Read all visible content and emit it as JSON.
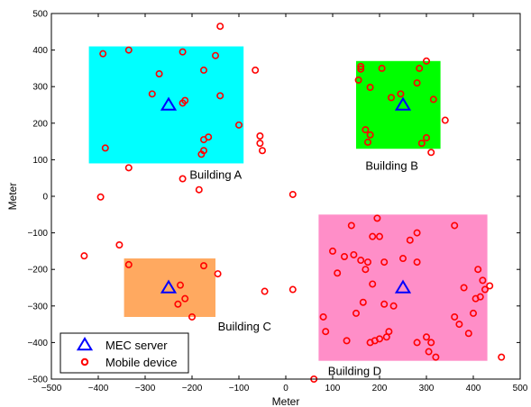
{
  "chart_data": {
    "type": "scatter",
    "title": "",
    "xlabel": "Meter",
    "ylabel": "Meter",
    "xlim": [
      -500,
      500
    ],
    "ylim": [
      -500,
      500
    ],
    "xticks": [
      -500,
      -400,
      -300,
      -200,
      -100,
      0,
      100,
      200,
      300,
      400,
      500
    ],
    "yticks": [
      -500,
      -400,
      -300,
      -200,
      -100,
      0,
      100,
      200,
      300,
      400,
      500
    ],
    "xtick_labels": [
      "−500",
      "−400",
      "−300",
      "−200",
      "−100",
      "0",
      "100",
      "200",
      "300",
      "400",
      "500"
    ],
    "ytick_labels": [
      "−500",
      "−400",
      "−300",
      "−200",
      "−100",
      "0",
      "100",
      "200",
      "300",
      "400",
      "500"
    ],
    "grid": false,
    "legend_position": "bottom-left",
    "buildings": [
      {
        "name": "Building A",
        "x0": -420,
        "x1": -90,
        "y0": 90,
        "y1": 410,
        "color": "#00ffff",
        "label_x": -205,
        "label_y": 60
      },
      {
        "name": "Building B",
        "x0": 150,
        "x1": 330,
        "y0": 130,
        "y1": 370,
        "color": "#00ff00",
        "label_x": 170,
        "label_y": 85
      },
      {
        "name": "Building C",
        "x0": -345,
        "x1": -150,
        "y0": -330,
        "y1": -170,
        "color": "#ffa960",
        "label_x": -145,
        "label_y": -355
      },
      {
        "name": "Building D",
        "x0": 70,
        "x1": 430,
        "y0": -450,
        "y1": -50,
        "color": "#ff8ec8",
        "label_x": 90,
        "label_y": -477
      }
    ],
    "series": [
      {
        "name": "MEC server",
        "marker": "triangle",
        "color": "#0000ff",
        "points": [
          [
            -250,
            250
          ],
          [
            250,
            250
          ],
          [
            -250,
            -250
          ],
          [
            250,
            -250
          ]
        ]
      },
      {
        "name": "Mobile device",
        "marker": "circle",
        "color": "#ff0000",
        "points": [
          [
            -390,
            390
          ],
          [
            -335,
            400
          ],
          [
            -220,
            395
          ],
          [
            -150,
            385
          ],
          [
            -140,
            465
          ],
          [
            -270,
            335
          ],
          [
            -175,
            345
          ],
          [
            -65,
            345
          ],
          [
            -285,
            280
          ],
          [
            -140,
            275
          ],
          [
            -220,
            255
          ],
          [
            -215,
            262
          ],
          [
            -100,
            195
          ],
          [
            -55,
            165
          ],
          [
            -55,
            145
          ],
          [
            -50,
            125
          ],
          [
            -175,
            155
          ],
          [
            -165,
            162
          ],
          [
            -175,
            125
          ],
          [
            -180,
            115
          ],
          [
            -385,
            132
          ],
          [
            -335,
            78
          ],
          [
            -220,
            48
          ],
          [
            -185,
            18
          ],
          [
            -395,
            -2
          ],
          [
            15,
            5
          ],
          [
            160,
            355
          ],
          [
            160,
            348
          ],
          [
            205,
            350
          ],
          [
            285,
            350
          ],
          [
            300,
            370
          ],
          [
            155,
            318
          ],
          [
            280,
            310
          ],
          [
            180,
            298
          ],
          [
            225,
            270
          ],
          [
            245,
            280
          ],
          [
            315,
            265
          ],
          [
            340,
            208
          ],
          [
            170,
            182
          ],
          [
            180,
            168
          ],
          [
            175,
            148
          ],
          [
            290,
            145
          ],
          [
            300,
            160
          ],
          [
            310,
            120
          ],
          [
            -430,
            -163
          ],
          [
            -355,
            -133
          ],
          [
            -335,
            -187
          ],
          [
            -225,
            -243
          ],
          [
            -230,
            -295
          ],
          [
            -215,
            -280
          ],
          [
            -175,
            -190
          ],
          [
            -145,
            -212
          ],
          [
            -200,
            -330
          ],
          [
            -45,
            -260
          ],
          [
            15,
            -255
          ],
          [
            140,
            -80
          ],
          [
            195,
            -60
          ],
          [
            100,
            -150
          ],
          [
            125,
            -165
          ],
          [
            185,
            -110
          ],
          [
            200,
            -110
          ],
          [
            360,
            -80
          ],
          [
            265,
            -120
          ],
          [
            280,
            -100
          ],
          [
            110,
            -210
          ],
          [
            145,
            -160
          ],
          [
            160,
            -175
          ],
          [
            175,
            -180
          ],
          [
            210,
            -180
          ],
          [
            170,
            -200
          ],
          [
            185,
            -240
          ],
          [
            280,
            -180
          ],
          [
            250,
            -170
          ],
          [
            230,
            -300
          ],
          [
            165,
            -290
          ],
          [
            210,
            -295
          ],
          [
            80,
            -330
          ],
          [
            150,
            -320
          ],
          [
            410,
            -200
          ],
          [
            380,
            -250
          ],
          [
            420,
            -230
          ],
          [
            425,
            -255
          ],
          [
            435,
            -245
          ],
          [
            415,
            -275
          ],
          [
            405,
            -280
          ],
          [
            400,
            -320
          ],
          [
            85,
            -370
          ],
          [
            130,
            -395
          ],
          [
            180,
            -400
          ],
          [
            190,
            -395
          ],
          [
            220,
            -370
          ],
          [
            215,
            -385
          ],
          [
            200,
            -390
          ],
          [
            280,
            -400
          ],
          [
            310,
            -400
          ],
          [
            360,
            -330
          ],
          [
            370,
            -350
          ],
          [
            390,
            -375
          ],
          [
            300,
            -385
          ],
          [
            305,
            -425
          ],
          [
            320,
            -440
          ],
          [
            460,
            -440
          ],
          [
            60,
            -500
          ]
        ]
      }
    ]
  }
}
